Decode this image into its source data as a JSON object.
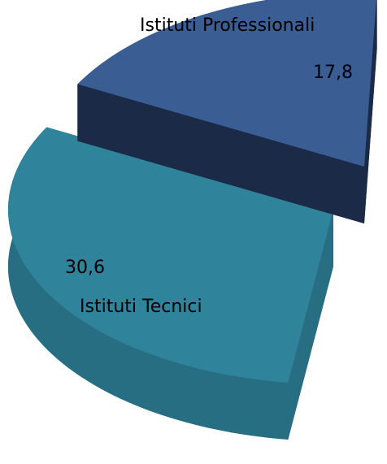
{
  "chart_data": {
    "type": "pie",
    "categories": [
      "Istituti Tecnici",
      "Istituti Professionali"
    ],
    "values": [
      30.6,
      17.8
    ],
    "value_labels": [
      "30,6",
      "17,8"
    ],
    "colors": [
      "#2f849b",
      "#3a5e94"
    ]
  }
}
